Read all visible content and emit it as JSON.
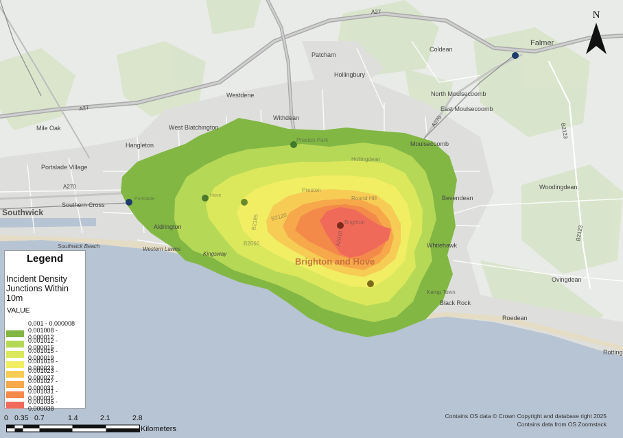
{
  "legend": {
    "title": "Legend",
    "subtitle": "Incident Density Junctions Within 10m",
    "value_header": "VALUE",
    "classes": [
      {
        "label": "0.001 - 0.000008",
        "color": "#ffffff"
      },
      {
        "label": "0.001008 - 0.000012",
        "color": "#82b744"
      },
      {
        "label": "0.001012 - 0.000015",
        "color": "#b6d857"
      },
      {
        "label": "0.001015 - 0.000019",
        "color": "#dbe85c"
      },
      {
        "label": "0.001019 - 0.000023",
        "color": "#f1ee64"
      },
      {
        "label": "0.001023 - 0.000027",
        "color": "#f6cc55"
      },
      {
        "label": "0.001027 - 0.000031",
        "color": "#f6a84a"
      },
      {
        "label": "0.001031 - 0.000035",
        "color": "#f38a4a"
      },
      {
        "label": "0.001035 - 0.000038",
        "color": "#f06a5a"
      }
    ]
  },
  "scalebar": {
    "ticks": [
      "0",
      "0.35",
      "0.7",
      "1.4",
      "2.1",
      "2.8"
    ],
    "unit": "Kilometers"
  },
  "credits": {
    "line1": "Contains OS data © Crown Copyright and database right 2025",
    "line2": "Contains data from OS Zoomstack"
  },
  "north_arrow": {
    "label": "N",
    "icon": "north-arrow-icon"
  },
  "places": {
    "falmer": "Falmer",
    "patcham": "Patcham",
    "coldean": "Coldean",
    "hollingbury": "Hollingbury",
    "westdene": "Westdene",
    "north_moulsecoomb": "North Moulsecoomb",
    "east_moulsecoomb": "East Moulsecoomb",
    "mile_oak": "Mile Oak",
    "west_blatchington": "West Blatchington",
    "withdean": "Withdean",
    "hangleton": "Hangleton",
    "moulsecoomb": "Moulsecoomb",
    "portslade_village": "Portslade Village",
    "woodingdean": "Woodingdean",
    "southern_cross": "Southern Cross",
    "bevendean": "Bevendean",
    "southwick": "Southwick",
    "aldrington": "Aldrington",
    "whitehawk": "Whitehawk",
    "southwick_beach": "Southwick Beach",
    "western_lawns": "Western Lawns",
    "kingsway": "Kingsway",
    "brighton_and_hove": "Brighton and Hove",
    "ovingdean": "Ovingdean",
    "kemp_town": "Kemp Town",
    "black_rock": "Black Rock",
    "roedean": "Roedean",
    "rottingdean": "Rotting",
    "preston": "Preston",
    "preston_park": "Preston Park",
    "round_hill": "Round Hill",
    "hollingdean": "Hollingdean",
    "brighton": "Brighton",
    "portslade": "Portslade",
    "hove": "Hove",
    "a27": "A27",
    "a27b": "A27",
    "a270": "A270",
    "a270b": "A270",
    "b2123": "B2123",
    "b2123b": "B2123",
    "b2120": "B2120",
    "b2185": "B2185",
    "b2066": "B2066",
    "b2010": "A2010"
  },
  "colors": {
    "land": "#e9ebe8",
    "sea": "#b6c3d2",
    "beach": "#e8dfc7",
    "road_major": "#b8b8b8",
    "road_minor": "#ffffff",
    "green": "#d6e3c6"
  }
}
